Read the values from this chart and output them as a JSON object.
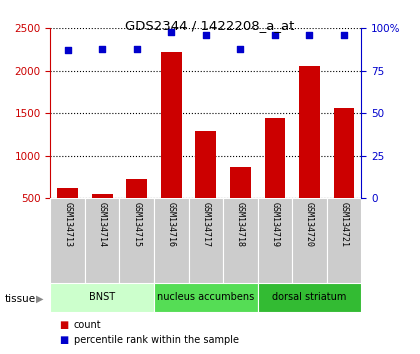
{
  "title": "GDS2344 / 1422208_a_at",
  "samples": [
    "GSM134713",
    "GSM134714",
    "GSM134715",
    "GSM134716",
    "GSM134717",
    "GSM134718",
    "GSM134719",
    "GSM134720",
    "GSM134721"
  ],
  "counts": [
    620,
    545,
    730,
    2220,
    1290,
    870,
    1450,
    2060,
    1560
  ],
  "percentiles": [
    87,
    88,
    88,
    98,
    96,
    88,
    96,
    96,
    96
  ],
  "bar_color": "#cc0000",
  "dot_color": "#0000cc",
  "ylim_left": [
    500,
    2500
  ],
  "ylim_right": [
    0,
    100
  ],
  "yticks_left": [
    500,
    1000,
    1500,
    2000,
    2500
  ],
  "yticks_right": [
    0,
    25,
    50,
    75,
    100
  ],
  "groups": [
    {
      "label": "BNST",
      "start": 0,
      "end": 3,
      "color": "#ccffcc"
    },
    {
      "label": "nucleus accumbens",
      "start": 3,
      "end": 6,
      "color": "#55dd55"
    },
    {
      "label": "dorsal striatum",
      "start": 6,
      "end": 9,
      "color": "#33bb33"
    }
  ],
  "tissue_label": "tissue",
  "legend_count_label": "count",
  "legend_pct_label": "percentile rank within the sample",
  "background_color": "#ffffff",
  "grid_color": "#000000",
  "title_color": "#000000",
  "left_axis_color": "#cc0000",
  "right_axis_color": "#0000cc",
  "sample_bg_color": "#cccccc",
  "sample_label_fontsize": 6.0,
  "bar_width": 0.6
}
